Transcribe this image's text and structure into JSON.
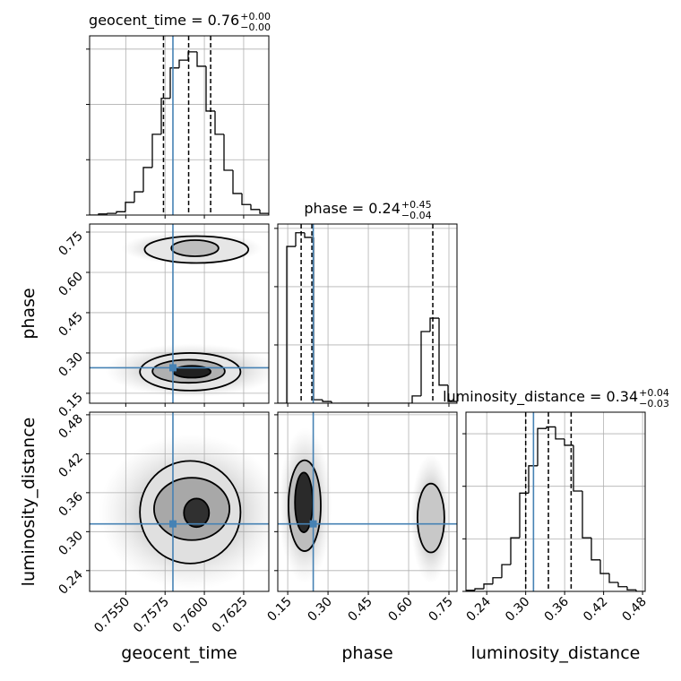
{
  "chart_data": {
    "type": "corner",
    "truth_color": "#4682b4",
    "grid": true,
    "parameters": [
      {
        "name": "geocent_time",
        "lim": [
          0.7527,
          0.7641
        ],
        "ticks": [
          {
            "value": 0.755,
            "label": "0.7550"
          },
          0.7575,
          {
            "value": 0.76,
            "label": "0.7600"
          },
          0.7625
        ],
        "truth": 0.758,
        "quantiles": [
          0.7574,
          0.759,
          0.7604
        ],
        "title": {
          "text": "geocent_time = 0.76",
          "upper": "+0.00",
          "lower": "−0.00"
        },
        "hist": {
          "bins": [
            0.7527,
            0.75327,
            0.75384,
            0.75441,
            0.75498,
            0.75555,
            0.75612,
            0.75669,
            0.75726,
            0.75783,
            0.7584,
            0.75897,
            0.75954,
            0.76011,
            0.76068,
            0.76125,
            0.76182,
            0.76239,
            0.76296,
            0.76353,
            0.7641
          ],
          "values": [
            0,
            2,
            3,
            6,
            23,
            42,
            86,
            146,
            211,
            266,
            280,
            295,
            269,
            188,
            146,
            81,
            39,
            19,
            10,
            3
          ],
          "ylim": [
            0,
            324
          ],
          "yticks": [
            0,
            100,
            200,
            300
          ]
        }
      },
      {
        "name": "phase",
        "lim": [
          0.113,
          0.78
        ],
        "ticks": [
          0.15,
          {
            "value": 0.3,
            "label": "0.30"
          },
          0.45,
          {
            "value": 0.6,
            "label": "0.60"
          },
          0.75
        ],
        "truth": 0.245,
        "quantiles": [
          0.2,
          0.24,
          0.69
        ],
        "title": {
          "text": "phase = 0.24",
          "upper": "+0.45",
          "lower": "−0.04"
        },
        "hist": {
          "bins": [
            0.113,
            0.1464,
            0.1797,
            0.2131,
            0.2464,
            0.2798,
            0.3131,
            0.3465,
            0.3798,
            0.4132,
            0.4465,
            0.4799,
            0.5132,
            0.5466,
            0.5799,
            0.6133,
            0.6466,
            0.68,
            0.7133,
            0.7467,
            0.78
          ],
          "values": [
            0,
            538,
            585,
            569,
            12,
            6,
            0,
            0,
            0,
            0,
            0,
            0,
            0,
            0,
            0,
            25,
            246,
            292,
            62,
            6
          ],
          "ylim": [
            0,
            615
          ],
          "yticks": [
            0,
            200,
            400,
            600
          ]
        }
      },
      {
        "name": "luminosity_distance",
        "lim": [
          0.208,
          0.484
        ],
        "ticks": [
          0.24,
          {
            "value": 0.3,
            "label": "0.30"
          },
          0.36,
          0.42,
          0.48
        ],
        "truth": 0.312,
        "quantiles": [
          0.3,
          0.335,
          0.37
        ],
        "title": {
          "text": "luminosity_distance = 0.34",
          "upper": "+0.04",
          "lower": "−0.03"
        },
        "hist": {
          "bins": [
            0.208,
            0.2218,
            0.2356,
            0.2494,
            0.2632,
            0.277,
            0.2908,
            0.3046,
            0.3184,
            0.3322,
            0.346,
            0.3598,
            0.3736,
            0.3874,
            0.4012,
            0.415,
            0.4288,
            0.4426,
            0.4564,
            0.4702,
            0.484
          ],
          "values": [
            2,
            5,
            14,
            26,
            51,
            102,
            187,
            239,
            310,
            313,
            290,
            278,
            191,
            102,
            60,
            34,
            17,
            9,
            3,
            0
          ],
          "ylim": [
            0,
            341
          ],
          "yticks": [
            0,
            100,
            200,
            300
          ]
        }
      }
    ],
    "pairs": [
      {
        "x": 0,
        "y": 1,
        "blobs": [
          {
            "cx": 0.7592,
            "cy": 0.69,
            "rx": 0.0045,
            "ry": 0.06
          },
          {
            "cx": 0.7592,
            "cy": 0.235,
            "rx": 0.0055,
            "ry": 0.1
          }
        ],
        "contours": [
          {
            "cx": 0.7595,
            "cy": 0.685,
            "rx": 0.0033,
            "ry": 0.05,
            "fill": "#e6e6e6"
          },
          {
            "cx": 0.7594,
            "cy": 0.69,
            "rx": 0.0015,
            "ry": 0.03,
            "fill": "#bdbdbd"
          },
          {
            "cx": 0.7591,
            "cy": 0.23,
            "rx": 0.0032,
            "ry": 0.07,
            "fill": "#e6e6e6"
          },
          {
            "cx": 0.759,
            "cy": 0.232,
            "rx": 0.0023,
            "ry": 0.043,
            "fill": "#b0b0b0"
          },
          {
            "cx": 0.7592,
            "cy": 0.23,
            "rx": 0.0012,
            "ry": 0.022,
            "fill": "#202020"
          }
        ]
      },
      {
        "x": 0,
        "y": 2,
        "blobs": [
          {
            "cx": 0.7591,
            "cy": 0.33,
            "rx": 0.0058,
            "ry": 0.12
          }
        ],
        "contours": [
          {
            "cx": 0.7591,
            "cy": 0.33,
            "rx": 0.0032,
            "ry": 0.079,
            "fill": "#e0e0e0"
          },
          {
            "cx": 0.7592,
            "cy": 0.335,
            "rx": 0.0024,
            "ry": 0.048,
            "fill": "#a8a8a8"
          },
          {
            "cx": 0.7595,
            "cy": 0.329,
            "rx": 0.0008,
            "ry": 0.022,
            "fill": "#303030"
          }
        ]
      },
      {
        "x": 1,
        "y": 2,
        "blobs": [
          {
            "cx": 0.215,
            "cy": 0.34,
            "rx": 0.1,
            "ry": 0.12
          },
          {
            "cx": 0.683,
            "cy": 0.32,
            "rx": 0.075,
            "ry": 0.1
          }
        ],
        "contours": [
          {
            "cx": 0.213,
            "cy": 0.34,
            "rx": 0.06,
            "ry": 0.07,
            "fill": "#bdbdbd"
          },
          {
            "cx": 0.21,
            "cy": 0.345,
            "rx": 0.033,
            "ry": 0.046,
            "fill": "#2a2a2a"
          },
          {
            "cx": 0.683,
            "cy": 0.321,
            "rx": 0.05,
            "ry": 0.053,
            "fill": "#c8c8c8"
          }
        ]
      }
    ]
  }
}
